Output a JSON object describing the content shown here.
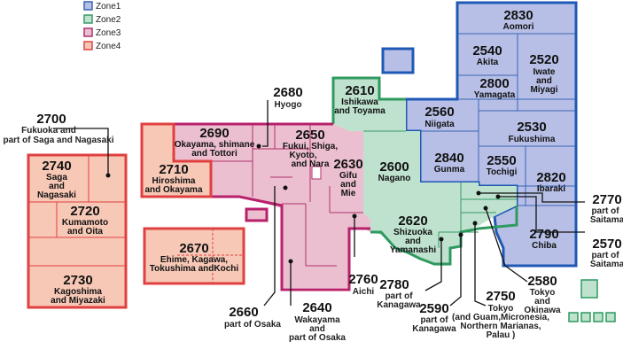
{
  "legend": [
    {
      "label": "Zone1",
      "color": "#3b64b6"
    },
    {
      "label": "Zone2",
      "color": "#3a9a6a"
    },
    {
      "label": "Zone3",
      "color": "#b0306e"
    },
    {
      "label": "Zone4",
      "color": "#dd4444"
    }
  ],
  "zones": {
    "zone1": {
      "fill": "#b7bfe6",
      "stroke": "#1f59b5"
    },
    "zone2": {
      "fill": "#bfe2cf",
      "stroke": "#2f9a60"
    },
    "zone3": {
      "fill": "#ebbfcf",
      "stroke": "#b8206b"
    },
    "zone4": {
      "fill": "#f7c8b6",
      "stroke": "#e04040"
    }
  },
  "regions": [
    {
      "code": "2830",
      "name": [
        "Aomori"
      ]
    },
    {
      "code": "2540",
      "name": [
        "Akita"
      ]
    },
    {
      "code": "2520",
      "name": [
        "Iwate",
        "and",
        "Miyagi"
      ]
    },
    {
      "code": "2800",
      "name": [
        "Yamagata"
      ]
    },
    {
      "code": "2530",
      "name": [
        "Fukushima"
      ]
    },
    {
      "code": "2560",
      "name": [
        "Niigata"
      ]
    },
    {
      "code": "2840",
      "name": [
        "Gunma"
      ]
    },
    {
      "code": "2550",
      "name": [
        "Tochigi"
      ]
    },
    {
      "code": "2820",
      "name": [
        "Ibaraki"
      ]
    },
    {
      "code": "2790",
      "name": [
        "Chiba"
      ]
    },
    {
      "code": "2610",
      "name": [
        "Ishikawa",
        "and Toyama"
      ]
    },
    {
      "code": "2600",
      "name": [
        "Nagano"
      ]
    },
    {
      "code": "2620",
      "name": [
        "Shizuoka",
        "and",
        "Yamanashi"
      ]
    },
    {
      "code": "2690",
      "name": [
        "Okayama, shimane",
        "and Tottori"
      ]
    },
    {
      "code": "2650",
      "name": [
        "Fukui, Shiga,",
        "Kyoto,",
        "and Nara"
      ]
    },
    {
      "code": "2630",
      "name": [
        "Gifu",
        "and",
        "Mie"
      ]
    },
    {
      "code": "2710",
      "name": [
        "Hiroshima",
        "and Okayama"
      ]
    },
    {
      "code": "2740",
      "name": [
        "Saga",
        "and",
        "Nagasaki"
      ]
    },
    {
      "code": "2720",
      "name": [
        "Kumamoto",
        "and Oita"
      ]
    },
    {
      "code": "2730",
      "name": [
        "Kagoshima",
        "and Miyazaki"
      ]
    },
    {
      "code": "2670",
      "name": [
        "Ehime, Kagawa,",
        "Tokushima andKochi"
      ]
    }
  ],
  "callouts": [
    {
      "code": "2680",
      "lines": [
        "Hyogo"
      ]
    },
    {
      "code": "2700",
      "lines": [
        "Fukuoka and",
        "part of Saga and Nagasaki"
      ]
    },
    {
      "code": "2770",
      "lines": [
        "part of",
        "Saitama"
      ]
    },
    {
      "code": "2570",
      "lines": [
        "part of",
        "Saitama"
      ]
    },
    {
      "code": "2760",
      "lines": [
        "Aichi"
      ]
    },
    {
      "code": "2660",
      "lines": [
        "part of Osaka"
      ]
    },
    {
      "code": "2640",
      "lines": [
        "Wakayama",
        "and",
        "part of Osaka"
      ]
    },
    {
      "code": "2780",
      "lines": [
        "part of",
        "Kanagawa"
      ]
    },
    {
      "code": "2590",
      "lines": [
        "part of",
        "Kanagawa"
      ]
    },
    {
      "code": "2750",
      "lines": [
        "Tokyo",
        "(and Guam,Micronesia,",
        "Northern Marianas,",
        "Palau )"
      ]
    },
    {
      "code": "2580",
      "lines": [
        "Tokyo",
        "and",
        "Okinawa"
      ]
    }
  ]
}
